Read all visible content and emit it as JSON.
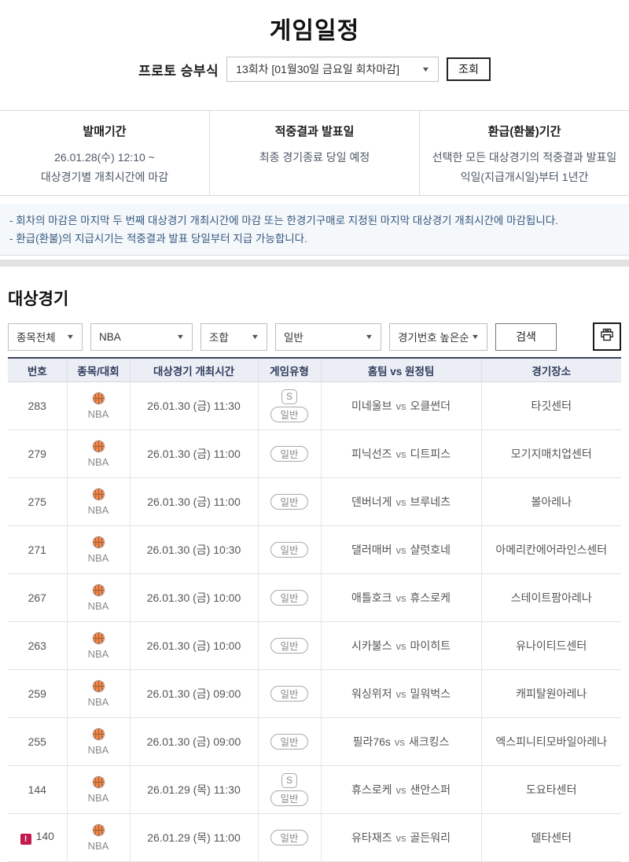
{
  "page": {
    "title": "게임일정"
  },
  "proto": {
    "label": "프로토 승부식",
    "round_selected": "13회차 [01월30일 금요일 회차마감]",
    "inquiry_button": "조회"
  },
  "info_boxes": [
    {
      "title": "발매기간",
      "lines": [
        "26.01.28(수) 12:10 ~",
        "대상경기별 개최시간에 마감"
      ]
    },
    {
      "title": "적중결과 발표일",
      "lines": [
        "최종 경기종료 당일 예정"
      ]
    },
    {
      "title": "환급(환불)기간",
      "lines": [
        "선택한 모든 대상경기의 적중결과 발표일",
        "익일(지급개시일)부터 1년간"
      ]
    }
  ],
  "notices": [
    "- 회차의 마감은 마지막 두 번째 대상경기 개최시간에 마감 또는 한경기구매로 지정된 마지막 대상경기 개최시간에 마감됩니다.",
    "- 환급(환불)의 지급시기는 적중결과 발표 당일부터 지급 가능합니다."
  ],
  "section": {
    "title": "대상경기",
    "filters": [
      {
        "name": "sport",
        "label": "종목전체"
      },
      {
        "name": "league",
        "label": "NBA"
      },
      {
        "name": "combo",
        "label": "조합"
      },
      {
        "name": "type",
        "label": "일반"
      },
      {
        "name": "sort",
        "label": "경기번호 높은순"
      }
    ],
    "search_button": "검색",
    "print_icon": "printer-icon"
  },
  "table": {
    "headers": [
      "번호",
      "종목/대회",
      "대상경기 개최시간",
      "게임유형",
      "홈팀  vs  원정팀",
      "경기장소"
    ],
    "vs_label": "vs",
    "rows": [
      {
        "number": "283",
        "alert": false,
        "sport_icon": "basketball-icon",
        "league": "NBA",
        "datetime": "26.01.30 (금) 11:30",
        "badges": [
          "S",
          "일반"
        ],
        "home": "미네울브",
        "away": "오클썬더",
        "venue": "타깃센터"
      },
      {
        "number": "279",
        "alert": false,
        "sport_icon": "basketball-icon",
        "league": "NBA",
        "datetime": "26.01.30 (금) 11:00",
        "badges": [
          "일반"
        ],
        "home": "피닉선즈",
        "away": "디트피스",
        "venue": "모기지매치업센터"
      },
      {
        "number": "275",
        "alert": false,
        "sport_icon": "basketball-icon",
        "league": "NBA",
        "datetime": "26.01.30 (금) 11:00",
        "badges": [
          "일반"
        ],
        "home": "덴버너게",
        "away": "브루네츠",
        "venue": "볼아레나"
      },
      {
        "number": "271",
        "alert": false,
        "sport_icon": "basketball-icon",
        "league": "NBA",
        "datetime": "26.01.30 (금) 10:30",
        "badges": [
          "일반"
        ],
        "home": "댈러매버",
        "away": "샬럿호네",
        "venue": "아메리칸에어라인스센터"
      },
      {
        "number": "267",
        "alert": false,
        "sport_icon": "basketball-icon",
        "league": "NBA",
        "datetime": "26.01.30 (금) 10:00",
        "badges": [
          "일반"
        ],
        "home": "애틀호크",
        "away": "휴스로케",
        "venue": "스테이트팜아레나"
      },
      {
        "number": "263",
        "alert": false,
        "sport_icon": "basketball-icon",
        "league": "NBA",
        "datetime": "26.01.30 (금) 10:00",
        "badges": [
          "일반"
        ],
        "home": "시카불스",
        "away": "마이히트",
        "venue": "유나이티드센터"
      },
      {
        "number": "259",
        "alert": false,
        "sport_icon": "basketball-icon",
        "league": "NBA",
        "datetime": "26.01.30 (금) 09:00",
        "badges": [
          "일반"
        ],
        "home": "워싱위저",
        "away": "밀워벅스",
        "venue": "캐피탈원아레나"
      },
      {
        "number": "255",
        "alert": false,
        "sport_icon": "basketball-icon",
        "league": "NBA",
        "datetime": "26.01.30 (금) 09:00",
        "badges": [
          "일반"
        ],
        "home": "필라76s",
        "away": "새크킹스",
        "venue": "엑스피니티모바일아레나"
      },
      {
        "number": "144",
        "alert": false,
        "sport_icon": "basketball-icon",
        "league": "NBA",
        "datetime": "26.01.29 (목) 11:30",
        "badges": [
          "S",
          "일반"
        ],
        "home": "휴스로케",
        "away": "샌안스퍼",
        "venue": "도요타센터"
      },
      {
        "number": "140",
        "alert": true,
        "sport_icon": "basketball-icon",
        "league": "NBA",
        "datetime": "26.01.29 (목) 11:00",
        "badges": [
          "일반"
        ],
        "home": "유타재즈",
        "away": "골든워리",
        "venue": "델타센터"
      }
    ]
  },
  "colors": {
    "alert_red": "#c41a4b",
    "ball_orange": "#ef8a4e",
    "table_top_border": "#3b4357",
    "header_bg": "#eceef6",
    "notice_bg": "#f5f8fb",
    "notice_text": "#33567e"
  }
}
